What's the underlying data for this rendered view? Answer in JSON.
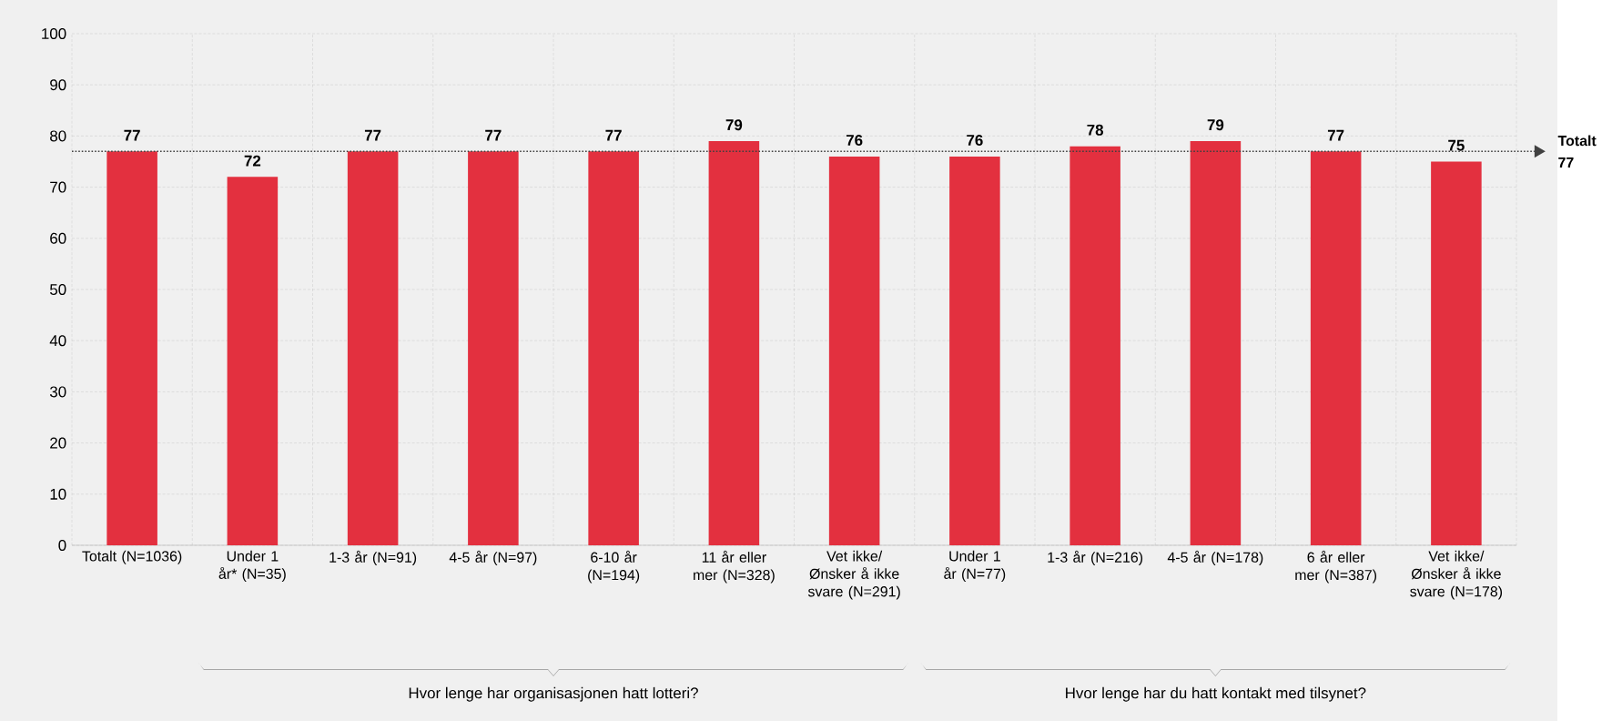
{
  "chart_data": {
    "type": "bar",
    "categories": [
      "Totalt (N=1036)",
      "Under 1 år* (N=35)",
      "1-3 år (N=91)",
      "4-5 år (N=97)",
      "6-10 år (N=194)",
      "11 år eller mer (N=328)",
      "Vet ikke/ Ønsker å ikke svare (N=291)",
      "Under 1 år (N=77)",
      "1-3 år (N=216)",
      "4-5 år (N=178)",
      "6 år eller mer (N=387)",
      "Vet ikke/ Ønsker å ikke svare (N=178)"
    ],
    "values": [
      77,
      72,
      77,
      77,
      77,
      79,
      76,
      76,
      78,
      79,
      77,
      75
    ],
    "color": "#e3303f",
    "ylim": [
      0,
      100
    ],
    "yticks": [
      0,
      10,
      20,
      30,
      40,
      50,
      60,
      70,
      80,
      90,
      100
    ],
    "grid": true,
    "data_labels": true,
    "ref_lines": [
      {
        "axis": "y",
        "value": 77,
        "label": "Totalt 77",
        "color": "#404040",
        "line_style": "dotted"
      }
    ],
    "annotations": [
      "Hvor lenge har organisasjonen hatt lotteri?",
      "Hvor lenge har du hatt kontakt med tilsynet?"
    ]
  }
}
